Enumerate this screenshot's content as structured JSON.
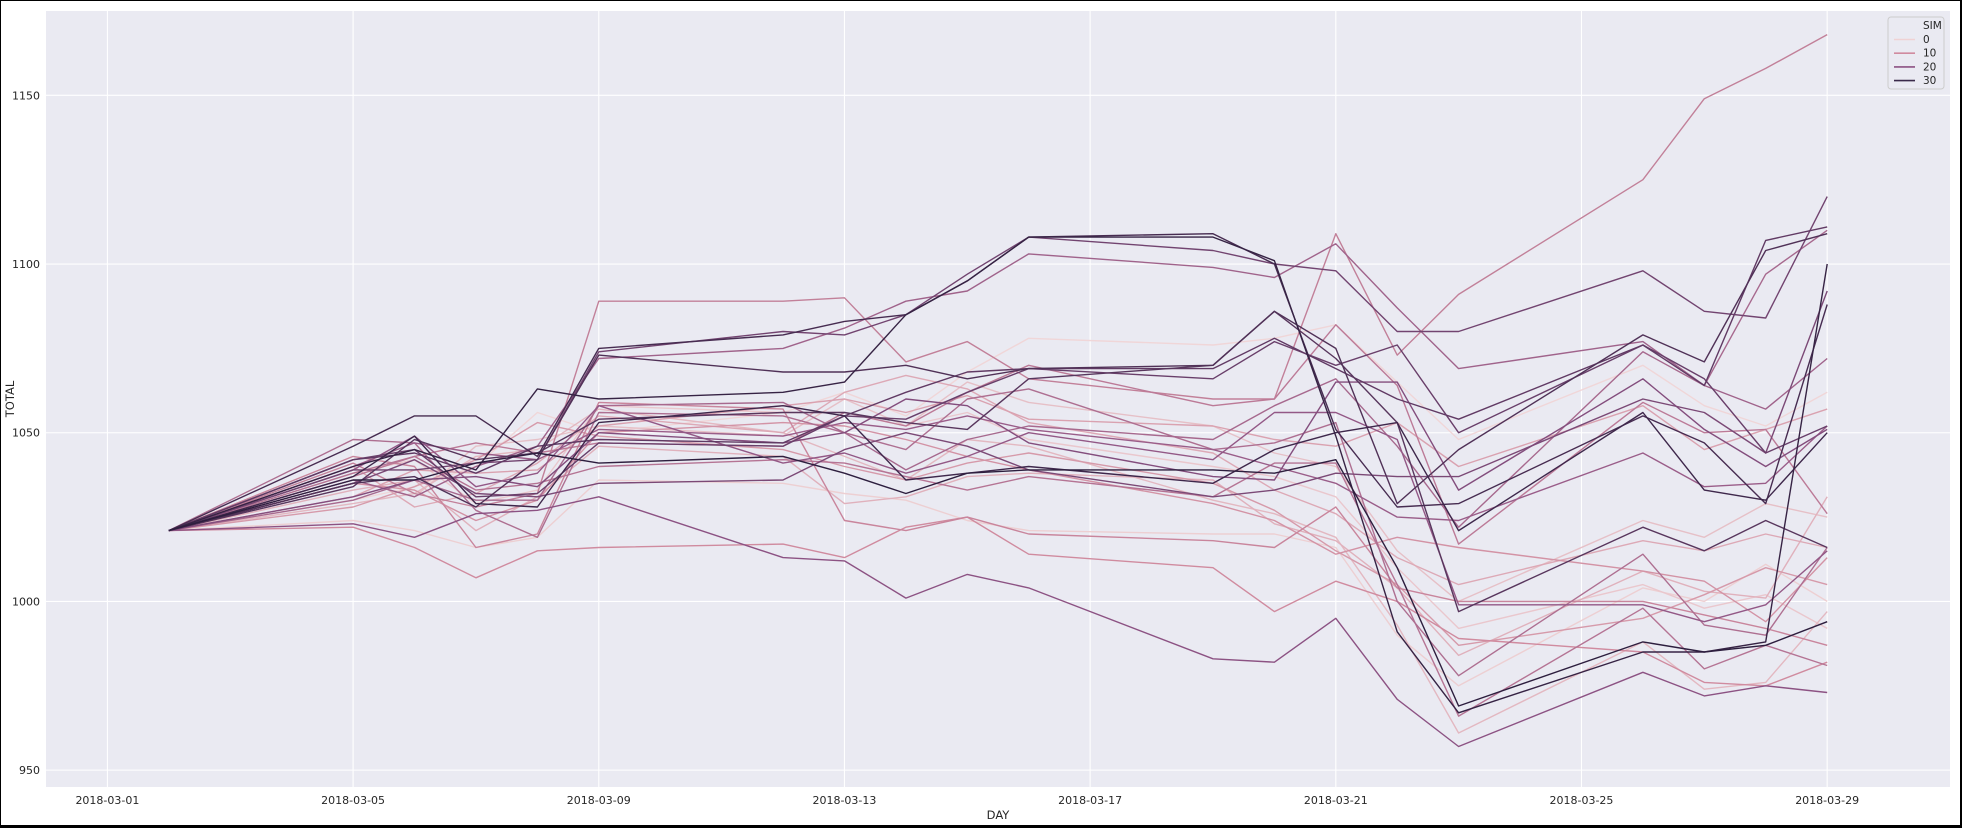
{
  "chart_data": {
    "type": "line",
    "xlabel": "DAY",
    "ylabel": "TOTAL",
    "xlim": [
      "2018-02-28",
      "2018-03-31"
    ],
    "ylim": [
      945,
      1175
    ],
    "x_ticks": [
      "2018-03-01",
      "2018-03-05",
      "2018-03-09",
      "2018-03-13",
      "2018-03-17",
      "2018-03-21",
      "2018-03-25",
      "2018-03-29"
    ],
    "y_ticks": [
      950,
      1000,
      1050,
      1100,
      1150
    ],
    "grid": true,
    "background": "#eaeaf2",
    "legend": {
      "title": "SIM",
      "placement": "top-right",
      "entries": [
        {
          "label": "0",
          "color": "#efd2d4"
        },
        {
          "label": "10",
          "color": "#d08b9f"
        },
        {
          "label": "20",
          "color": "#8c5283"
        },
        {
          "label": "30",
          "color": "#3a2a4a"
        }
      ]
    },
    "dates": [
      "2018-03-02",
      "2018-03-05",
      "2018-03-06",
      "2018-03-07",
      "2018-03-08",
      "2018-03-09",
      "2018-03-12",
      "2018-03-13",
      "2018-03-14",
      "2018-03-15",
      "2018-03-16",
      "2018-03-19",
      "2018-03-20",
      "2018-03-21",
      "2018-03-22",
      "2018-03-23",
      "2018-03-26",
      "2018-03-27",
      "2018-03-28",
      "2018-03-29"
    ],
    "series": [
      {
        "sim": 0,
        "values": [
          1021,
          1030,
          1034,
          1040,
          1056,
          1050,
          1056,
          1062,
          1055,
          1068,
          1078,
          1076,
          1078,
          1082,
          1065,
          1048,
          1070,
          1058,
          1052,
          1062
        ]
      },
      {
        "sim": 1,
        "values": [
          1021,
          1024,
          1021,
          1016,
          1019,
          1036,
          1035,
          1032,
          1030,
          1024,
          1021,
          1020,
          1020,
          1016,
          990,
          975,
          1004,
          1000,
          1011,
          1000
        ]
      },
      {
        "sim": 2,
        "values": [
          1021,
          1038,
          1042,
          1029,
          1033,
          1058,
          1056,
          1056,
          1052,
          1056,
          1048,
          1040,
          1037,
          1031,
          1010,
          992,
          1005,
          998,
          1002,
          992
        ]
      },
      {
        "sim": 3,
        "values": [
          1021,
          1036,
          1031,
          1046,
          1048,
          1052,
          1049,
          1060,
          1052,
          1065,
          1059,
          1052,
          1044,
          1040,
          1015,
          1000,
          1024,
          1019,
          1029,
          1025
        ]
      },
      {
        "sim": 4,
        "values": [
          1021,
          1029,
          1032,
          1043,
          1045,
          1057,
          1050,
          1043,
          1036,
          1048,
          1046,
          1030,
          1026,
          1019,
          993,
          961,
          988,
          974,
          976,
          997
        ]
      },
      {
        "sim": 5,
        "values": [
          1021,
          1033,
          1036,
          1021,
          1031,
          1046,
          1043,
          1029,
          1031,
          1037,
          1038,
          1036,
          1023,
          1018,
          1004,
          984,
          1009,
          1003,
          1001,
          1031
        ]
      },
      {
        "sim": 6,
        "values": [
          1021,
          1040,
          1028,
          1032,
          1041,
          1055,
          1050,
          1062,
          1067,
          1063,
          1053,
          1044,
          1033,
          1026,
          1013,
          1005,
          1018,
          1015,
          1020,
          1016
        ]
      },
      {
        "sim": 7,
        "values": [
          1021,
          1031,
          1039,
          1038,
          1039,
          1052,
          1058,
          1060,
          1056,
          1061,
          1054,
          1052,
          1048,
          1046,
          1053,
          1040,
          1058,
          1045,
          1051,
          1057
        ]
      },
      {
        "sim": 8,
        "values": [
          1021,
          1028,
          1034,
          1042,
          1053,
          1049,
          1045,
          1040,
          1036,
          1041,
          1044,
          1035,
          1027,
          1015,
          1005,
          987,
          995,
          1002,
          1010,
          1005
        ]
      },
      {
        "sim": 9,
        "values": [
          1021,
          1035,
          1033,
          1024,
          1030,
          1050,
          1053,
          1052,
          1048,
          1043,
          1039,
          1029,
          1024,
          1014,
          1019,
          1016,
          1009,
          1006,
          994,
          1013
        ]
      },
      {
        "sim": 10,
        "values": [
          1021,
          1022,
          1016,
          1007,
          1015,
          1016,
          1017,
          1013,
          1022,
          1025,
          1014,
          1010,
          997,
          1006,
          1000,
          989,
          985,
          976,
          975,
          982
        ]
      },
      {
        "sim": 11,
        "values": [
          1021,
          1043,
          1040,
          1016,
          1020,
          1059,
          1057,
          1024,
          1021,
          1025,
          1020,
          1018,
          1016,
          1028,
          1004,
          1000,
          1000,
          996,
          992,
          987
        ]
      },
      {
        "sim": 12,
        "values": [
          1021,
          1041,
          1032,
          1028,
          1032,
          1089,
          1089,
          1090,
          1071,
          1077,
          1066,
          1060,
          1060,
          1109,
          1073,
          1091,
          1125,
          1149,
          1158,
          1168
        ]
      },
      {
        "sim": 13,
        "values": [
          1021,
          1037,
          1043,
          1047,
          1044,
          1047,
          1046,
          1056,
          1052,
          1062,
          1070,
          1058,
          1060,
          1082,
          1064,
          1017,
          1059,
          1050,
          1051,
          1026
        ]
      },
      {
        "sim": 14,
        "values": [
          1021,
          1038,
          1043,
          1033,
          1035,
          1040,
          1042,
          1041,
          1037,
          1033,
          1037,
          1031,
          1041,
          1041,
          1005,
          966,
          998,
          980,
          987,
          981
        ]
      },
      {
        "sim": 15,
        "values": [
          1021,
          1048,
          1047,
          1027,
          1019,
          1056,
          1055,
          1050,
          1045,
          1060,
          1063,
          1045,
          1047,
          1053,
          1000,
          978,
          1014,
          993,
          990,
          1016
        ]
      },
      {
        "sim": 16,
        "values": [
          1021,
          1030,
          1036,
          1030,
          1030,
          1058,
          1059,
          1050,
          1039,
          1048,
          1052,
          1048,
          1058,
          1066,
          1046,
          1022,
          1074,
          1064,
          1097,
          1110
        ]
      },
      {
        "sim": 17,
        "values": [
          1021,
          1036,
          1031,
          1040,
          1046,
          1072,
          1075,
          1081,
          1089,
          1092,
          1103,
          1099,
          1096,
          1106,
          1087,
          1069,
          1077,
          1064,
          1057,
          1072
        ]
      },
      {
        "sim": 18,
        "values": [
          1021,
          1040,
          1047,
          1044,
          1042,
          1051,
          1049,
          1053,
          1051,
          1055,
          1051,
          1045,
          1040,
          1035,
          1025,
          1024,
          1044,
          1034,
          1035,
          1052
        ]
      },
      {
        "sim": 19,
        "values": [
          1021,
          1039,
          1049,
          1034,
          1038,
          1058,
          1041,
          1044,
          1038,
          1043,
          1050,
          1042,
          1056,
          1056,
          1048,
          999,
          999,
          994,
          999,
          1015
        ]
      },
      {
        "sim": 20,
        "values": [
          1021,
          1023,
          1019,
          1026,
          1027,
          1031,
          1013,
          1012,
          1001,
          1008,
          1004,
          983,
          982,
          995,
          971,
          957,
          979,
          972,
          975,
          973
        ]
      },
      {
        "sim": 21,
        "values": [
          1021,
          1031,
          1036,
          1037,
          1034,
          1050,
          1047,
          1050,
          1060,
          1058,
          1047,
          1037,
          1036,
          1065,
          1065,
          1033,
          1066,
          1051,
          1040,
          1051
        ]
      },
      {
        "sim": 22,
        "values": [
          1021,
          1035,
          1042,
          1032,
          1031,
          1035,
          1036,
          1045,
          1050,
          1046,
          1039,
          1031,
          1033,
          1038,
          1037,
          1037,
          1060,
          1056,
          1044,
          1092
        ]
      },
      {
        "sim": 23,
        "values": [
          1021,
          1039,
          1039,
          1041,
          1042,
          1074,
          1080,
          1079,
          1085,
          1097,
          1108,
          1104,
          1100,
          1098,
          1080,
          1080,
          1098,
          1086,
          1084,
          1120
        ]
      },
      {
        "sim": 24,
        "values": [
          1021,
          1042,
          1045,
          1031,
          1032,
          1047,
          1046,
          1055,
          1054,
          1062,
          1069,
          1066,
          1077,
          1070,
          1076,
          1050,
          1076,
          1066,
          1044,
          1052
        ]
      },
      {
        "sim": 25,
        "values": [
          1021,
          1042,
          1044,
          1038,
          1046,
          1048,
          1047,
          1055,
          1062,
          1068,
          1069,
          1069,
          1078,
          1069,
          1060,
          1054,
          1076,
          1064,
          1107,
          1111
        ]
      },
      {
        "sim": 26,
        "values": [
          1021,
          1034,
          1048,
          1042,
          1044,
          1054,
          1056,
          1056,
          1053,
          1051,
          1066,
          1070,
          1086,
          1072,
          1053,
          997,
          1022,
          1015,
          1024,
          1016
        ]
      },
      {
        "sim": 27,
        "values": [
          1021,
          1035,
          1037,
          1028,
          1042,
          1073,
          1068,
          1068,
          1070,
          1066,
          1069,
          1070,
          1086,
          1075,
          1029,
          1045,
          1079,
          1071,
          1104,
          1109
        ]
      },
      {
        "sim": 28,
        "values": [
          1021,
          1046,
          1055,
          1055,
          1043,
          1075,
          1079,
          1083,
          1085,
          1095,
          1108,
          1109,
          1100,
          1051,
          1028,
          1029,
          1055,
          1047,
          1029,
          1088
        ]
      },
      {
        "sim": 29,
        "values": [
          1021,
          1037,
          1049,
          1029,
          1028,
          1053,
          1058,
          1055,
          1036,
          1038,
          1040,
          1035,
          1045,
          1050,
          1053,
          1021,
          1056,
          1033,
          1030,
          1050
        ]
      },
      {
        "sim": 30,
        "values": [
          1021,
          1040,
          1045,
          1039,
          1063,
          1060,
          1062,
          1065,
          1085,
          1095,
          1108,
          1108,
          1101,
          1049,
          991,
          967,
          985,
          985,
          988,
          1100
        ]
      },
      {
        "sim": 31,
        "values": [
          1021,
          1036,
          1036,
          1041,
          1044,
          1041,
          1043,
          1038,
          1032,
          1038,
          1039,
          1039,
          1038,
          1042,
          1010,
          969,
          988,
          985,
          987,
          994
        ]
      }
    ]
  }
}
